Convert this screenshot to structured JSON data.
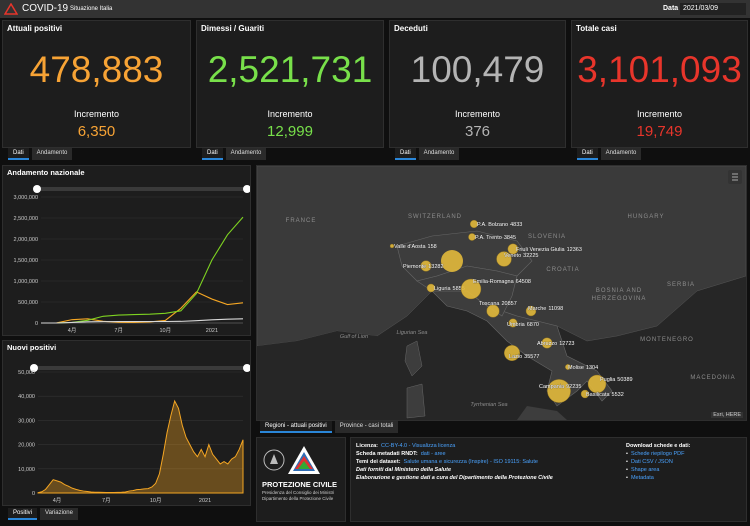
{
  "header": {
    "title": "COVID-19",
    "subtitle": "Situazione Italia",
    "date_label": "Data",
    "date": "2021/03/09"
  },
  "cards": [
    {
      "title": "Attuali positivi",
      "value": "478,883",
      "increment_label": "Incremento",
      "increment": "6,350",
      "color": "#f7a335",
      "tabs": [
        "Dati",
        "Andamento"
      ]
    },
    {
      "title": "Dimessi / Guariti",
      "value": "2,521,731",
      "increment_label": "Incremento",
      "increment": "12,999",
      "color": "#78e04a",
      "tabs": [
        "Dati",
        "Andamento"
      ]
    },
    {
      "title": "Deceduti",
      "value": "100,479",
      "increment_label": "Incremento",
      "increment": "376",
      "color": "#b4b4b4",
      "tabs": [
        "Dati",
        "Andamento"
      ]
    },
    {
      "title": "Totale casi",
      "value": "3,101,093",
      "increment_label": "Incremento",
      "increment": "19,749",
      "color": "#e8352b",
      "tabs": [
        "Dati",
        "Andamento"
      ]
    }
  ],
  "chart_data": [
    {
      "type": "line",
      "title": "Andamento nazionale",
      "categories": [
        null,
        null,
        "4月",
        null,
        null,
        "7月",
        null,
        null,
        "10月",
        null,
        null,
        "2021",
        null,
        null
      ],
      "series": [
        {
          "color": "#f5a623",
          "values": [
            0,
            1000,
            80000,
            100000,
            40000,
            15000,
            12000,
            25000,
            60000,
            350000,
            740000,
            570000,
            440000,
            480000
          ]
        },
        {
          "color": "#7ed321",
          "values": [
            0,
            0,
            15000,
            64000,
            160000,
            190000,
            200000,
            210000,
            230000,
            290000,
            700000,
            1500000,
            2100000,
            2520000
          ]
        },
        {
          "color": "#d8d8d8",
          "values": [
            0,
            0,
            13000,
            28000,
            33000,
            35000,
            35000,
            35500,
            36000,
            39000,
            55000,
            75000,
            90000,
            100000
          ]
        }
      ],
      "ylim": [
        0,
        3000000
      ],
      "yticks": [
        0,
        {
          "value": 500000,
          "label": "500,000"
        },
        {
          "value": 1000000,
          "label": "1,000,000"
        },
        {
          "value": 1500000,
          "label": "1,500,000"
        },
        {
          "value": 2000000,
          "label": "2,000,000"
        },
        {
          "value": 2500000,
          "label": "2,500,000"
        },
        {
          "value": 3000000,
          "label": "3,000,000"
        }
      ],
      "grid": true
    },
    {
      "type": "area",
      "title": "Nuovi positivi",
      "categories": [
        null,
        null,
        null,
        null,
        null,
        "4月",
        null,
        null,
        null,
        null,
        null,
        null,
        null,
        null,
        null,
        null,
        null,
        null,
        "7月",
        null,
        null,
        null,
        null,
        null,
        null,
        null,
        null,
        null,
        null,
        null,
        null,
        "10月",
        null,
        null,
        null,
        null,
        null,
        null,
        null,
        null,
        null,
        null,
        null,
        null,
        "2021",
        null,
        null,
        null,
        null,
        null,
        null,
        null,
        null,
        null,
        null
      ],
      "values": [
        100,
        500,
        1500,
        3500,
        5500,
        5000,
        4500,
        3500,
        2800,
        2000,
        1500,
        1100,
        800,
        600,
        400,
        330,
        300,
        250,
        200,
        200,
        190,
        250,
        300,
        400,
        800,
        1000,
        1400,
        1500,
        1700,
        1800,
        2500,
        4000,
        8000,
        16000,
        25000,
        32000,
        38000,
        35000,
        28000,
        23000,
        20000,
        17000,
        15000,
        18000,
        15000,
        20000,
        16000,
        14000,
        12000,
        13000,
        12000,
        14000,
        15000,
        18000,
        22000
      ],
      "color": "#f5a623",
      "ylim": [
        0,
        50000
      ],
      "yticks": [
        0,
        {
          "value": 10000,
          "label": "10,000"
        },
        {
          "value": 20000,
          "label": "20,000"
        },
        {
          "value": 30000,
          "label": "30,000"
        },
        {
          "value": 40000,
          "label": "40,000"
        },
        {
          "value": 50000,
          "label": "50,000"
        }
      ],
      "grid": true,
      "tabs": [
        "Positivi",
        "Variazione"
      ]
    }
  ],
  "map": {
    "regions": [
      {
        "name": "P.A. Bolzano",
        "value": 4833
      },
      {
        "name": "P.A. Trento",
        "value": 3845
      },
      {
        "name": "Friuli Venezia Giulia",
        "value": 12363
      },
      {
        "name": "Veneto",
        "value": 32225
      },
      {
        "name": "Valle d'Aosta",
        "value": 158
      },
      {
        "name": "Piemonte",
        "value": 13282
      },
      {
        "name": "Liguria",
        "value": 5855
      },
      {
        "name": "Emilia-Romagna",
        "value": 64508
      },
      {
        "name": "Toscana",
        "value": 20857
      },
      {
        "name": "Marche",
        "value": 11098
      },
      {
        "name": "Umbria",
        "value": 6870
      },
      {
        "name": "Abruzzo",
        "value": 12723
      },
      {
        "name": "Lazio",
        "value": 35577
      },
      {
        "name": "Molise",
        "value": 1304
      },
      {
        "name": "Campania",
        "value": 92235
      },
      {
        "name": "Puglia",
        "value": 50389
      },
      {
        "name": "Basilicata",
        "value": 5532
      }
    ],
    "places": [
      "FRANCE",
      "SWITZERLAND",
      "SLOVENIA",
      "CROATIA",
      "HUNGARY",
      "SERBIA",
      "BOSNIA AND",
      "HERZEGOVINA",
      "MONTENEGRO",
      "MACEDONIA",
      "Gulf of Lion",
      "Ligurian Sea",
      "Tyrrhenian Sea"
    ],
    "attribution": "Esri, HERE",
    "tabs": [
      "Regioni - attuali positivi",
      "Province - casi totali"
    ]
  },
  "footer": {
    "logo_title": "PROTEZIONE CIVILE",
    "logo_lines": [
      "Presidenza del Consiglio dei Ministri",
      "Dipartimento della Protezione Civile"
    ],
    "info": [
      {
        "label": "Licenza:",
        "text": "CC-BY-4.0 - Visualizza licenza"
      },
      {
        "label": "Scheda metadati RNDT:",
        "text": "dati - aree"
      },
      {
        "label": "Temi dei dataset:",
        "text": "Salute umana e sicurezza (Inspire) - ISO 19115: Salute"
      }
    ],
    "notes": [
      "Dati forniti dal Ministero della Salute",
      "Elaborazione e gestione dati a cura del Dipartimento della Protezione Civile"
    ],
    "downloads_title": "Download schede e dati:",
    "downloads": [
      "Schede riepilogo PDF",
      "Dati CSV / JSON",
      "Shape area",
      "Metadata"
    ]
  }
}
